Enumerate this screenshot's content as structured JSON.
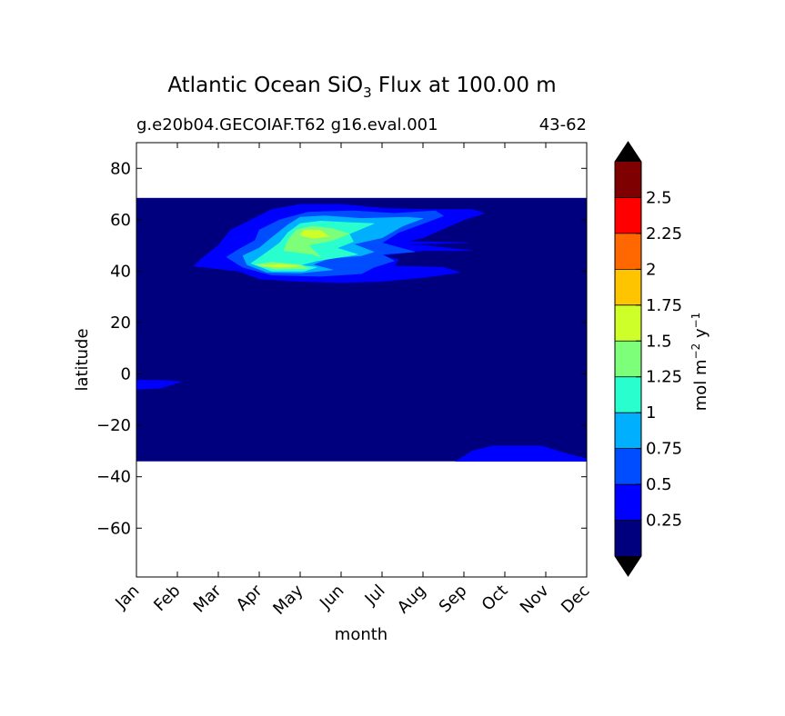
{
  "title": {
    "prefix": "Atlantic Ocean SiO",
    "subscript": "3",
    "suffix": " Flux at 100.00 m"
  },
  "subtitle_left": "g.e20b04.GECOIAF.T62 g16.eval.001",
  "subtitle_right": "43-62",
  "colorbar_label": {
    "part1": "mol m",
    "exp1": "−2",
    "part2": " y",
    "exp2": "−1"
  },
  "chart_data": {
    "type": "heatmap",
    "xlabel": "month",
    "ylabel": "latitude",
    "x_ticks": [
      "Jan",
      "Feb",
      "Mar",
      "Apr",
      "May",
      "Jun",
      "Jul",
      "Aug",
      "Sep",
      "Oct",
      "Nov",
      "Dec"
    ],
    "x_range": [
      1,
      12
    ],
    "y_ticks": [
      80,
      60,
      40,
      20,
      0,
      -20,
      -40,
      -60
    ],
    "y_range": [
      -79,
      90
    ],
    "data_extent_lat": [
      -34,
      68.5
    ],
    "colorbar": {
      "levels": [
        0,
        0.25,
        0.5,
        0.75,
        1,
        1.25,
        1.5,
        1.75,
        2,
        2.25,
        2.5,
        2.75
      ],
      "tick_labels": [
        "0.25",
        "0.5",
        "0.75",
        "1",
        "1.25",
        "1.5",
        "1.75",
        "2",
        "2.25",
        "2.5"
      ],
      "colors": [
        "#00007f",
        "#0000ff",
        "#004cff",
        "#00b0ff",
        "#29ffce",
        "#7dff7a",
        "#ceff29",
        "#ffc400",
        "#ff6800",
        "#ff0000",
        "#7f0000"
      ],
      "extend": "both",
      "extend_color": "#000000"
    },
    "contour_regions": [
      {
        "level_index": 1,
        "points": [
          [
            3.5,
            40
          ],
          [
            4.0,
            37
          ],
          [
            5.0,
            36
          ],
          [
            6.0,
            35.5
          ],
          [
            7.0,
            36
          ],
          [
            8.0,
            37.5
          ],
          [
            8.9,
            39.5
          ],
          [
            8.5,
            41.5
          ],
          [
            7.3,
            42
          ],
          [
            7.4,
            44.5
          ],
          [
            7.0,
            46
          ],
          [
            8.0,
            48
          ],
          [
            9.2,
            48
          ],
          [
            8.0,
            50
          ],
          [
            7.3,
            50.5
          ],
          [
            8.0,
            53
          ],
          [
            9.0,
            60
          ],
          [
            9.5,
            62.5
          ],
          [
            9.2,
            64
          ],
          [
            8.0,
            64
          ],
          [
            7.0,
            64.5
          ],
          [
            6.0,
            66
          ],
          [
            5.0,
            66
          ],
          [
            4.3,
            64
          ],
          [
            3.8,
            60
          ],
          [
            3.3,
            56
          ],
          [
            3.0,
            50
          ],
          [
            2.6,
            45
          ],
          [
            2.4,
            42
          ]
        ]
      },
      {
        "level_index": 1,
        "points": [
          [
            1.0,
            -2.5
          ],
          [
            1.6,
            -2.5
          ],
          [
            2.1,
            -3
          ],
          [
            1.6,
            -5.5
          ],
          [
            1.0,
            -6
          ]
        ]
      },
      {
        "level_index": 1,
        "points": [
          [
            8.8,
            -34
          ],
          [
            9.2,
            -30
          ],
          [
            9.7,
            -28
          ],
          [
            10.9,
            -28
          ],
          [
            11.5,
            -31
          ],
          [
            12.0,
            -33
          ],
          [
            12.0,
            -34
          ]
        ]
      },
      {
        "level_index": 1,
        "points": [
          [
            6.2,
            50
          ],
          [
            7.6,
            50.5
          ],
          [
            9.1,
            51
          ],
          [
            7.9,
            51.5
          ],
          [
            6.3,
            51.5
          ]
        ]
      },
      {
        "level_index": 2,
        "points": [
          [
            3.6,
            41.5
          ],
          [
            4.3,
            38.5
          ],
          [
            5.5,
            38
          ],
          [
            6.5,
            39
          ],
          [
            6.8,
            41.5
          ],
          [
            7.3,
            44
          ],
          [
            7.0,
            46.5
          ],
          [
            7.8,
            47.5
          ],
          [
            7.0,
            51
          ],
          [
            7.4,
            55
          ],
          [
            8.0,
            58.5
          ],
          [
            8.5,
            61.5
          ],
          [
            8.3,
            63.5
          ],
          [
            7.3,
            62.5
          ],
          [
            6.3,
            63.5
          ],
          [
            5.2,
            63
          ],
          [
            4.5,
            60
          ],
          [
            4.0,
            56
          ],
          [
            3.9,
            52
          ],
          [
            3.5,
            48.5
          ],
          [
            3.2,
            45.5
          ]
        ]
      },
      {
        "level_index": 3,
        "points": [
          [
            3.7,
            42.5
          ],
          [
            4.2,
            39.5
          ],
          [
            5.0,
            39.3
          ],
          [
            5.8,
            40.5
          ],
          [
            5.3,
            42.5
          ],
          [
            5.7,
            45
          ],
          [
            6.5,
            46
          ],
          [
            6.8,
            47.5
          ],
          [
            6.3,
            50.5
          ],
          [
            7.0,
            53
          ],
          [
            7.5,
            57.5
          ],
          [
            8.0,
            60.5
          ],
          [
            7.6,
            61
          ],
          [
            6.5,
            60.5
          ],
          [
            5.6,
            61.5
          ],
          [
            5.0,
            61
          ],
          [
            4.7,
            58
          ],
          [
            4.3,
            53
          ],
          [
            4.0,
            49
          ],
          [
            3.6,
            46
          ]
        ]
      },
      {
        "level_index": 4,
        "points": [
          [
            3.8,
            43
          ],
          [
            4.3,
            40
          ],
          [
            5.1,
            40
          ],
          [
            5.4,
            41.5
          ],
          [
            5.0,
            42.3
          ],
          [
            5.4,
            44
          ],
          [
            5.8,
            45
          ],
          [
            6.4,
            46.5
          ],
          [
            5.9,
            49
          ],
          [
            6.3,
            51.5
          ],
          [
            6.2,
            54.5
          ],
          [
            6.8,
            58.5
          ],
          [
            6.1,
            59
          ],
          [
            5.5,
            59.5
          ],
          [
            5.0,
            58.5
          ],
          [
            4.7,
            55
          ],
          [
            4.5,
            51
          ],
          [
            4.2,
            47.5
          ]
        ]
      },
      {
        "level_index": 5,
        "points": [
          [
            3.9,
            42.5
          ],
          [
            4.4,
            40.8
          ],
          [
            5.2,
            41
          ],
          [
            5.0,
            42.5
          ],
          [
            4.3,
            43.5
          ]
        ]
      },
      {
        "level_index": 5,
        "points": [
          [
            4.6,
            48
          ],
          [
            5.3,
            46.5
          ],
          [
            5.5,
            45.5
          ],
          [
            5.2,
            50
          ],
          [
            5.8,
            52
          ],
          [
            6.2,
            54.5
          ],
          [
            5.8,
            56.5
          ],
          [
            5.3,
            57.5
          ],
          [
            4.9,
            56
          ],
          [
            4.7,
            52
          ]
        ]
      },
      {
        "level_index": 6,
        "points": [
          [
            4.0,
            42.2
          ],
          [
            4.5,
            41.6
          ],
          [
            5.0,
            42.0
          ],
          [
            4.5,
            42.7
          ]
        ]
      },
      {
        "level_index": 6,
        "points": [
          [
            5.0,
            54
          ],
          [
            5.3,
            52.8
          ],
          [
            5.7,
            53.5
          ],
          [
            5.5,
            55.8
          ],
          [
            5.1,
            56
          ]
        ]
      }
    ]
  }
}
